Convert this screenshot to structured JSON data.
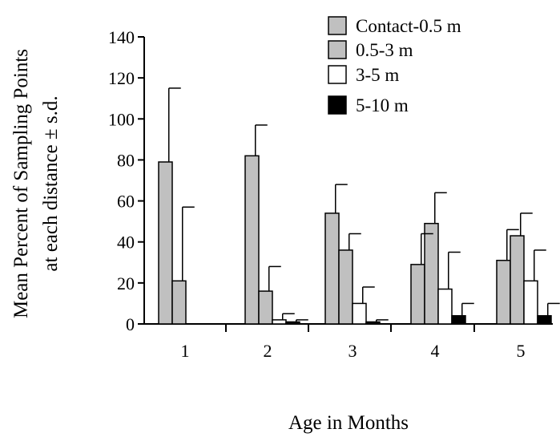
{
  "chart_data": {
    "type": "bar",
    "title": "",
    "xlabel": "Age in Months",
    "ylabel_lines": [
      "Mean Percent of Sampling Points",
      "at each distance ± s.d."
    ],
    "ylim": [
      0,
      140
    ],
    "yticks": [
      0,
      20,
      40,
      60,
      80,
      100,
      120,
      140
    ],
    "categories": [
      "1",
      "2",
      "3",
      "4",
      "5"
    ],
    "series": [
      {
        "name": "Contact-0.5 m",
        "color": "#c0c0c0",
        "values": [
          79,
          82,
          54,
          29,
          31
        ],
        "sd": [
          36,
          15,
          14,
          15,
          15
        ]
      },
      {
        "name": "0.5-3 m",
        "color": "#c0c0c0",
        "values": [
          21,
          16,
          36,
          49,
          43
        ],
        "sd": [
          36,
          12,
          8,
          15,
          11
        ]
      },
      {
        "name": "3-5 m",
        "color": "#ffffff",
        "values": [
          0,
          2,
          10,
          17,
          21
        ],
        "sd": [
          0,
          3,
          8,
          18,
          15
        ]
      },
      {
        "name": "5-10 m",
        "color": "#000000",
        "values": [
          0,
          1,
          1,
          4,
          4
        ],
        "sd": [
          0,
          1,
          1,
          6,
          6
        ]
      }
    ],
    "legend_position": "top-right",
    "grid": false
  }
}
